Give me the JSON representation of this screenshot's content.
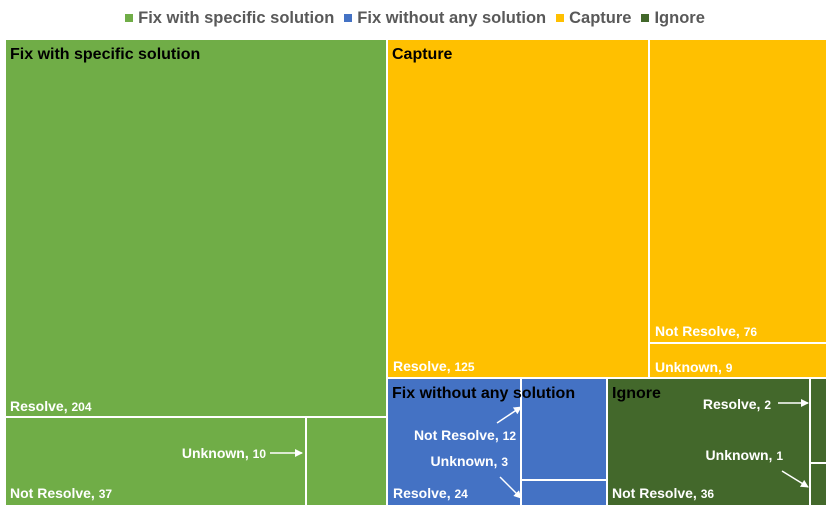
{
  "chart_data": {
    "type": "treemap",
    "legend": {
      "placement": "top",
      "entries": [
        {
          "name": "Fix with specific solution",
          "color": "#70AD47"
        },
        {
          "name": "Fix without any solution",
          "color": "#4472C4"
        },
        {
          "name": "Capture",
          "color": "#FFC000"
        },
        {
          "name": "Ignore",
          "color": "#43682B"
        }
      ]
    },
    "groups": [
      {
        "name": "Fix with specific solution",
        "color": "#70AD47",
        "items": [
          {
            "label": "Resolve",
            "value": 204
          },
          {
            "label": "Not Resolve",
            "value": 37
          },
          {
            "label": "Unknown",
            "value": 10
          }
        ]
      },
      {
        "name": "Capture",
        "color": "#FFC000",
        "items": [
          {
            "label": "Resolve",
            "value": 125
          },
          {
            "label": "Not Resolve",
            "value": 76
          },
          {
            "label": "Unknown",
            "value": 9
          }
        ]
      },
      {
        "name": "Fix without any solution",
        "color": "#4472C4",
        "items": [
          {
            "label": "Not Resolve",
            "value": 12
          },
          {
            "label": "Unknown",
            "value": 3
          },
          {
            "label": "Resolve",
            "value": 24
          }
        ]
      },
      {
        "name": "Ignore",
        "color": "#43682B",
        "items": [
          {
            "label": "Not Resolve",
            "value": 36
          },
          {
            "label": "Resolve",
            "value": 2
          },
          {
            "label": "Unknown",
            "value": 1
          }
        ]
      }
    ]
  }
}
